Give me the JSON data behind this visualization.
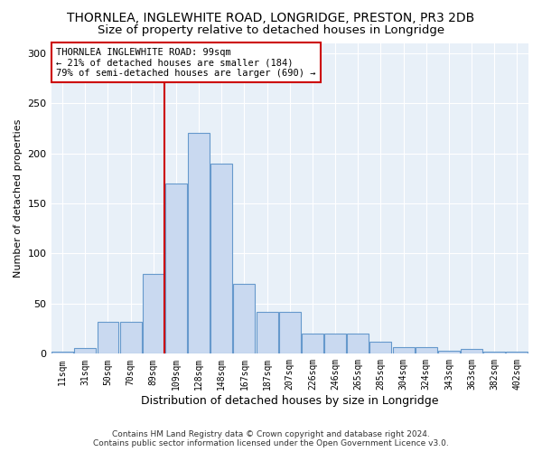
{
  "title": "THORNLEA, INGLEWHITE ROAD, LONGRIDGE, PRESTON, PR3 2DB",
  "subtitle": "Size of property relative to detached houses in Longridge",
  "xlabel": "Distribution of detached houses by size in Longridge",
  "ylabel": "Number of detached properties",
  "categories": [
    "11sqm",
    "31sqm",
    "50sqm",
    "70sqm",
    "89sqm",
    "109sqm",
    "128sqm",
    "148sqm",
    "167sqm",
    "187sqm",
    "207sqm",
    "226sqm",
    "246sqm",
    "265sqm",
    "285sqm",
    "304sqm",
    "324sqm",
    "343sqm",
    "363sqm",
    "382sqm",
    "402sqm"
  ],
  "values": [
    2,
    6,
    32,
    32,
    80,
    170,
    220,
    190,
    70,
    42,
    42,
    20,
    20,
    20,
    12,
    7,
    7,
    3,
    5,
    2,
    2
  ],
  "bar_color": "#c9d9f0",
  "bar_edge_color": "#6699cc",
  "vline_color": "#cc0000",
  "annotation_title": "THORNLEA INGLEWHITE ROAD: 99sqm",
  "annotation_line1": "← 21% of detached houses are smaller (184)",
  "annotation_line2": "79% of semi-detached houses are larger (690) →",
  "annotation_box_color": "#ffffff",
  "annotation_box_edge_color": "#cc0000",
  "footer_line1": "Contains HM Land Registry data © Crown copyright and database right 2024.",
  "footer_line2": "Contains public sector information licensed under the Open Government Licence v3.0.",
  "background_color": "#e8f0f8",
  "ylim": [
    0,
    310
  ],
  "title_fontsize": 10,
  "subtitle_fontsize": 9.5
}
